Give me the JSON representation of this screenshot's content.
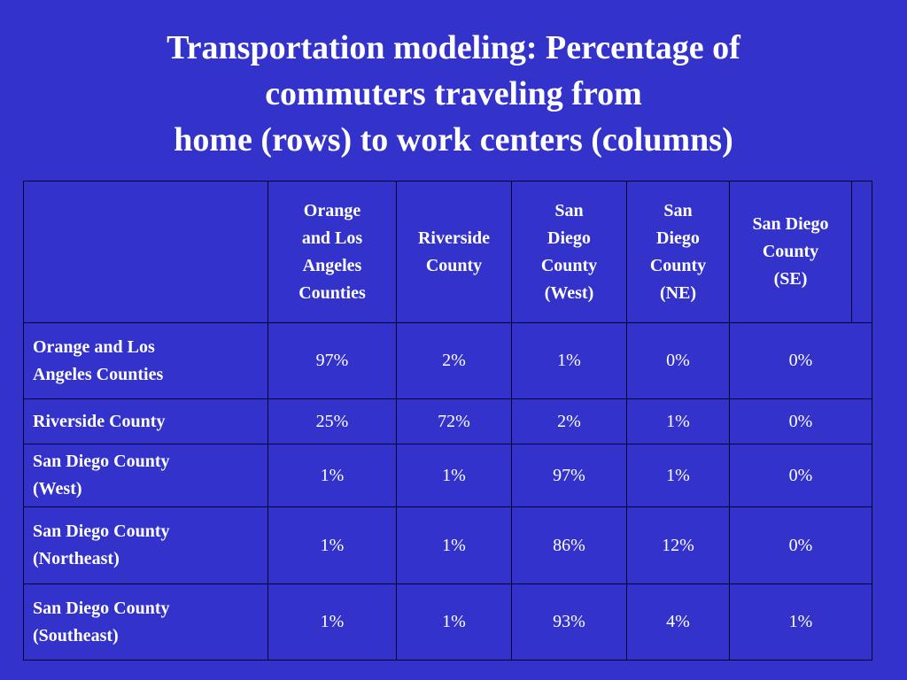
{
  "slide": {
    "title_lines": [
      "Transportation modeling: Percentage of",
      "commuters traveling from",
      "home (rows) to work centers (columns)"
    ]
  },
  "table": {
    "column_headers": [
      [
        "Orange",
        "and Los",
        "Angeles",
        "Counties"
      ],
      [
        "Riverside",
        "County"
      ],
      [
        "San",
        "Diego",
        "County",
        "(West)"
      ],
      [
        "San",
        "Diego",
        "County",
        "(NE)"
      ],
      [
        "San Diego",
        "County",
        "(SE)"
      ]
    ],
    "rows": [
      {
        "label": [
          "Orange and Los",
          "Angeles Counties"
        ],
        "values": [
          "97%",
          "2%",
          "1%",
          "0%",
          "0%"
        ]
      },
      {
        "label": [
          "Riverside County"
        ],
        "values": [
          "25%",
          "72%",
          "2%",
          "1%",
          "0%"
        ]
      },
      {
        "label": [
          "San Diego County",
          "(West)"
        ],
        "values": [
          "1%",
          "1%",
          "97%",
          "1%",
          "0%"
        ]
      },
      {
        "label": [
          "San Diego County",
          "(Northeast)"
        ],
        "values": [
          "1%",
          "1%",
          "86%",
          "12%",
          "0%"
        ]
      },
      {
        "label": [
          "San Diego County",
          "(Southeast)"
        ],
        "values": [
          "1%",
          "1%",
          "93%",
          "4%",
          "1%"
        ]
      }
    ]
  },
  "colors": {
    "background": "#3333CC",
    "text": "#FFFFFF",
    "grid_lines": "#000033"
  }
}
